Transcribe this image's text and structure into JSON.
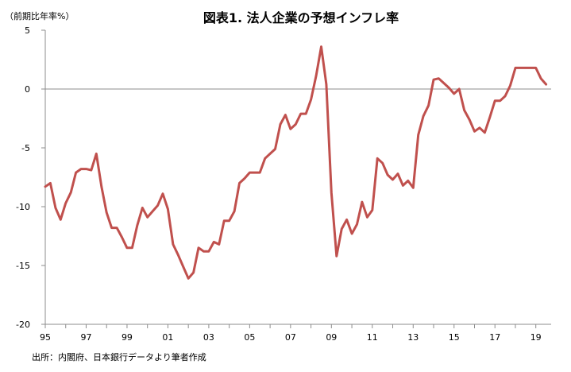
{
  "chart_data": {
    "type": "line",
    "title": "図表1. 法人企業の予想インフレ率",
    "unit_label": "（前期比年率%）",
    "source": "出所：内閣府、日本銀行データより筆者作成",
    "ylim": [
      -20,
      5
    ],
    "y_ticks": [
      5,
      0,
      -5,
      -10,
      -15,
      -20
    ],
    "xlim": [
      1995.0,
      2019.75
    ],
    "x_ticks": [
      {
        "x": 1995,
        "label": "95"
      },
      {
        "x": 1997,
        "label": "97"
      },
      {
        "x": 1999,
        "label": "99"
      },
      {
        "x": 2001,
        "label": "01"
      },
      {
        "x": 2003,
        "label": "03"
      },
      {
        "x": 2005,
        "label": "05"
      },
      {
        "x": 2007,
        "label": "07"
      },
      {
        "x": 2009,
        "label": "09"
      },
      {
        "x": 2011,
        "label": "11"
      },
      {
        "x": 2013,
        "label": "13"
      },
      {
        "x": 2015,
        "label": "15"
      },
      {
        "x": 2017,
        "label": "17"
      },
      {
        "x": 2019,
        "label": "19"
      }
    ],
    "grid": false,
    "series": [
      {
        "color": "#c0504d",
        "points": [
          [
            1995.0,
            -8.3
          ],
          [
            1995.25,
            -8.0
          ],
          [
            1995.5,
            -10.1
          ],
          [
            1995.75,
            -11.1
          ],
          [
            1996.0,
            -9.7
          ],
          [
            1996.25,
            -8.8
          ],
          [
            1996.5,
            -7.1
          ],
          [
            1996.75,
            -6.8
          ],
          [
            1997.0,
            -6.8
          ],
          [
            1997.25,
            -6.9
          ],
          [
            1997.5,
            -5.5
          ],
          [
            1997.75,
            -8.3
          ],
          [
            1998.0,
            -10.5
          ],
          [
            1998.25,
            -11.8
          ],
          [
            1998.5,
            -11.8
          ],
          [
            1998.75,
            -12.6
          ],
          [
            1999.0,
            -13.5
          ],
          [
            1999.25,
            -13.5
          ],
          [
            1999.5,
            -11.6
          ],
          [
            1999.75,
            -10.1
          ],
          [
            2000.0,
            -10.9
          ],
          [
            2000.25,
            -10.4
          ],
          [
            2000.5,
            -9.9
          ],
          [
            2000.75,
            -8.9
          ],
          [
            2001.0,
            -10.2
          ],
          [
            2001.25,
            -13.2
          ],
          [
            2001.5,
            -14.1
          ],
          [
            2001.75,
            -15.1
          ],
          [
            2002.0,
            -16.1
          ],
          [
            2002.25,
            -15.6
          ],
          [
            2002.5,
            -13.5
          ],
          [
            2002.75,
            -13.8
          ],
          [
            2003.0,
            -13.8
          ],
          [
            2003.25,
            -13.0
          ],
          [
            2003.5,
            -13.2
          ],
          [
            2003.75,
            -11.2
          ],
          [
            2004.0,
            -11.2
          ],
          [
            2004.25,
            -10.4
          ],
          [
            2004.5,
            -8.0
          ],
          [
            2004.75,
            -7.6
          ],
          [
            2005.0,
            -7.1
          ],
          [
            2005.25,
            -7.1
          ],
          [
            2005.5,
            -7.1
          ],
          [
            2005.75,
            -5.9
          ],
          [
            2006.0,
            -5.5
          ],
          [
            2006.25,
            -5.1
          ],
          [
            2006.5,
            -3.0
          ],
          [
            2006.75,
            -2.2
          ],
          [
            2007.0,
            -3.4
          ],
          [
            2007.25,
            -3.0
          ],
          [
            2007.5,
            -2.1
          ],
          [
            2007.75,
            -2.1
          ],
          [
            2008.0,
            -0.9
          ],
          [
            2008.25,
            1.1
          ],
          [
            2008.5,
            3.6
          ],
          [
            2008.75,
            0.4
          ],
          [
            2009.0,
            -8.8
          ],
          [
            2009.25,
            -14.2
          ],
          [
            2009.5,
            -11.9
          ],
          [
            2009.75,
            -11.1
          ],
          [
            2010.0,
            -12.3
          ],
          [
            2010.25,
            -11.5
          ],
          [
            2010.5,
            -9.6
          ],
          [
            2010.75,
            -10.9
          ],
          [
            2011.0,
            -10.3
          ],
          [
            2011.25,
            -5.9
          ],
          [
            2011.5,
            -6.3
          ],
          [
            2011.75,
            -7.3
          ],
          [
            2012.0,
            -7.7
          ],
          [
            2012.25,
            -7.2
          ],
          [
            2012.5,
            -8.2
          ],
          [
            2012.75,
            -7.8
          ],
          [
            2013.0,
            -8.4
          ],
          [
            2013.25,
            -3.9
          ],
          [
            2013.5,
            -2.3
          ],
          [
            2013.75,
            -1.4
          ],
          [
            2014.0,
            0.8
          ],
          [
            2014.25,
            0.9
          ],
          [
            2014.5,
            0.5
          ],
          [
            2014.75,
            0.1
          ],
          [
            2015.0,
            -0.4
          ],
          [
            2015.25,
            0.0
          ],
          [
            2015.5,
            -1.8
          ],
          [
            2015.75,
            -2.6
          ],
          [
            2016.0,
            -3.6
          ],
          [
            2016.25,
            -3.3
          ],
          [
            2016.5,
            -3.7
          ],
          [
            2016.75,
            -2.4
          ],
          [
            2017.0,
            -1.0
          ],
          [
            2017.25,
            -1.0
          ],
          [
            2017.5,
            -0.6
          ],
          [
            2017.75,
            0.3
          ],
          [
            2018.0,
            1.8
          ],
          [
            2018.25,
            1.8
          ],
          [
            2018.5,
            1.8
          ],
          [
            2018.75,
            1.8
          ],
          [
            2019.0,
            1.8
          ],
          [
            2019.25,
            0.9
          ],
          [
            2019.5,
            0.4
          ]
        ]
      }
    ]
  }
}
